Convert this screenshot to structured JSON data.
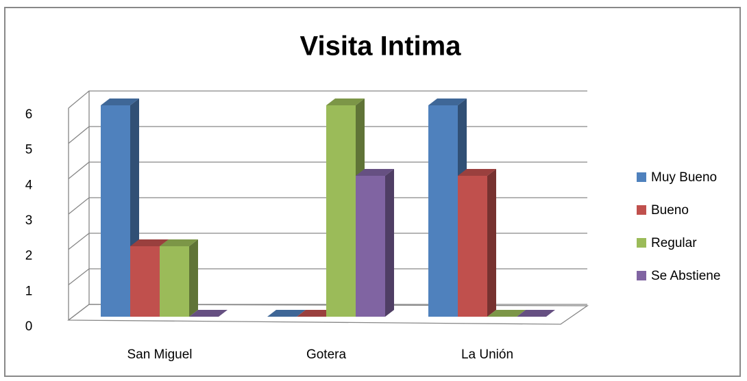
{
  "chart_data": {
    "type": "bar3d",
    "title": "Visita Intima",
    "categories": [
      "San Miguel",
      "Gotera",
      "La Unión"
    ],
    "series": [
      {
        "name": "Muy Bueno",
        "color": "#4f81bd",
        "values": [
          6,
          0,
          6
        ]
      },
      {
        "name": "Bueno",
        "color": "#c0504d",
        "values": [
          2,
          0,
          4
        ]
      },
      {
        "name": "Regular",
        "color": "#9bbb59",
        "values": [
          2,
          6,
          0
        ]
      },
      {
        "name": "Se Abstiene",
        "color": "#8064a2",
        "values": [
          0,
          4,
          0
        ]
      }
    ],
    "ylim": [
      0,
      6
    ],
    "yticks": [
      0,
      1,
      2,
      3,
      4,
      5,
      6
    ],
    "grid": true,
    "legend": "right"
  }
}
